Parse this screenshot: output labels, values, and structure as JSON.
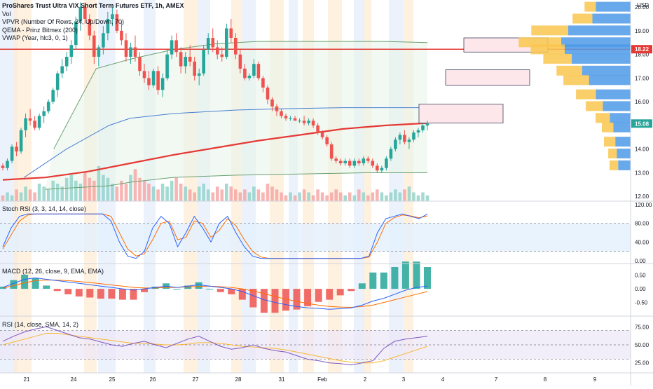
{
  "chart_data": {
    "type": "candlestick",
    "title": "ProShares Trust Ultra VIX Short Term Futures ETF, 1h, AMEX",
    "currency": "USD",
    "x_tick_labels": [
      "21",
      "24",
      "25",
      "26",
      "27",
      "28",
      "31",
      "Feb",
      "2",
      "3",
      "4",
      "7",
      "8",
      "9"
    ],
    "price_panel": {
      "ylim": [
        11.8,
        20.3
      ],
      "y_ticks": [
        "20.00",
        "19.00",
        "18.00",
        "17.00",
        "16.00",
        "15.00",
        "14.00",
        "13.00",
        "12.00"
      ],
      "price_labels": [
        {
          "text": "18.22",
          "value": 18.22,
          "color": "#e53935"
        },
        {
          "text": "15.08",
          "value": 15.08,
          "color": "#26a69a"
        }
      ],
      "candles_ohlc": [
        [
          13.3,
          13.4,
          13.1,
          13.2
        ],
        [
          13.2,
          13.6,
          13.1,
          13.5
        ],
        [
          13.5,
          14.2,
          13.4,
          14.1
        ],
        [
          14.1,
          14.3,
          13.7,
          13.9
        ],
        [
          13.9,
          14.9,
          13.8,
          14.8
        ],
        [
          14.8,
          15.5,
          14.5,
          15.3
        ],
        [
          15.3,
          15.7,
          15.0,
          15.2
        ],
        [
          15.2,
          15.4,
          14.8,
          14.9
        ],
        [
          14.9,
          15.5,
          14.8,
          15.4
        ],
        [
          15.4,
          15.8,
          15.1,
          15.6
        ],
        [
          15.6,
          16.1,
          15.5,
          16.0
        ],
        [
          16.0,
          16.6,
          15.9,
          16.5
        ],
        [
          16.5,
          17.3,
          16.2,
          17.2
        ],
        [
          17.2,
          17.8,
          17.0,
          17.5
        ],
        [
          17.5,
          18.1,
          17.3,
          17.9
        ],
        [
          17.9,
          18.6,
          17.6,
          18.4
        ],
        [
          18.4,
          19.6,
          18.2,
          19.4
        ],
        [
          19.4,
          20.2,
          19.0,
          20.0
        ],
        [
          20.0,
          20.2,
          19.3,
          19.5
        ],
        [
          19.5,
          19.7,
          18.6,
          18.8
        ],
        [
          18.8,
          19.0,
          17.6,
          17.9
        ],
        [
          17.9,
          18.4,
          17.5,
          18.3
        ],
        [
          18.3,
          19.2,
          18.0,
          18.9
        ],
        [
          18.9,
          19.8,
          18.6,
          19.5
        ],
        [
          19.5,
          20.0,
          19.2,
          19.7
        ],
        [
          19.7,
          19.9,
          18.9,
          19.0
        ],
        [
          19.0,
          19.4,
          18.4,
          18.6
        ],
        [
          18.6,
          18.9,
          17.7,
          17.9
        ],
        [
          17.9,
          18.5,
          17.6,
          18.3
        ],
        [
          18.3,
          18.8,
          17.7,
          17.9
        ],
        [
          17.9,
          18.1,
          17.1,
          17.3
        ],
        [
          17.3,
          17.6,
          16.8,
          17.0
        ],
        [
          17.0,
          17.3,
          16.5,
          16.7
        ],
        [
          16.7,
          17.4,
          16.6,
          17.3
        ],
        [
          17.3,
          17.5,
          16.3,
          16.5
        ],
        [
          16.5,
          17.2,
          16.2,
          17.0
        ],
        [
          17.0,
          18.2,
          16.9,
          18.0
        ],
        [
          18.0,
          18.8,
          17.8,
          18.6
        ],
        [
          18.6,
          18.9,
          17.9,
          18.1
        ],
        [
          18.1,
          18.3,
          17.2,
          17.5
        ],
        [
          17.5,
          18.1,
          17.2,
          17.9
        ],
        [
          17.9,
          18.4,
          17.5,
          17.7
        ],
        [
          17.7,
          17.9,
          16.9,
          17.1
        ],
        [
          17.1,
          17.4,
          16.7,
          17.2
        ],
        [
          17.2,
          18.4,
          17.1,
          18.2
        ],
        [
          18.2,
          18.9,
          18.0,
          18.7
        ],
        [
          18.7,
          19.1,
          18.1,
          18.3
        ],
        [
          18.3,
          18.6,
          17.8,
          18.0
        ],
        [
          18.0,
          18.3,
          17.7,
          17.9
        ],
        [
          17.9,
          19.3,
          17.8,
          19.1
        ],
        [
          19.1,
          19.5,
          18.5,
          18.7
        ],
        [
          18.7,
          18.9,
          17.8,
          18.0
        ],
        [
          18.0,
          18.2,
          17.2,
          17.4
        ],
        [
          17.4,
          17.6,
          16.9,
          17.0
        ],
        [
          17.0,
          17.2,
          16.9,
          17.1
        ],
        [
          17.1,
          17.8,
          17.0,
          17.6
        ],
        [
          17.6,
          17.7,
          16.9,
          17.0
        ],
        [
          17.0,
          17.1,
          16.4,
          16.6
        ],
        [
          16.6,
          16.7,
          15.9,
          16.1
        ],
        [
          16.1,
          16.2,
          15.6,
          15.8
        ],
        [
          15.8,
          15.9,
          15.4,
          15.6
        ],
        [
          15.6,
          15.7,
          15.3,
          15.4
        ],
        [
          15.4,
          15.5,
          15.2,
          15.3
        ],
        [
          15.3,
          15.4,
          15.2,
          15.3
        ],
        [
          15.3,
          15.4,
          15.2,
          15.2
        ],
        [
          15.2,
          15.3,
          15.1,
          15.2
        ],
        [
          15.2,
          15.4,
          15.0,
          15.1
        ],
        [
          15.1,
          15.3,
          15.0,
          15.2
        ],
        [
          15.2,
          15.3,
          14.9,
          15.0
        ],
        [
          15.0,
          15.1,
          14.6,
          14.7
        ],
        [
          14.7,
          14.8,
          14.4,
          14.5
        ],
        [
          14.5,
          14.6,
          14.1,
          14.2
        ],
        [
          14.2,
          14.3,
          13.5,
          13.6
        ],
        [
          13.6,
          13.7,
          13.4,
          13.5
        ],
        [
          13.5,
          13.6,
          13.3,
          13.4
        ],
        [
          13.4,
          13.6,
          13.3,
          13.5
        ],
        [
          13.5,
          13.6,
          13.2,
          13.3
        ],
        [
          13.3,
          13.6,
          13.2,
          13.5
        ],
        [
          13.5,
          13.6,
          13.3,
          13.4
        ],
        [
          13.4,
          13.7,
          13.3,
          13.6
        ],
        [
          13.6,
          13.7,
          13.4,
          13.5
        ],
        [
          13.5,
          13.6,
          13.2,
          13.3
        ],
        [
          13.3,
          13.4,
          13.0,
          13.1
        ],
        [
          13.1,
          13.3,
          13.0,
          13.2
        ],
        [
          13.2,
          13.7,
          13.1,
          13.6
        ],
        [
          13.6,
          14.1,
          13.5,
          14.0
        ],
        [
          14.0,
          14.5,
          13.9,
          14.4
        ],
        [
          14.4,
          14.7,
          14.2,
          14.6
        ],
        [
          14.6,
          14.8,
          14.2,
          14.3
        ],
        [
          14.3,
          14.5,
          14.0,
          14.4
        ],
        [
          14.4,
          14.8,
          14.3,
          14.7
        ],
        [
          14.7,
          14.9,
          14.5,
          14.8
        ],
        [
          14.8,
          15.1,
          14.7,
          15.0
        ],
        [
          15.0,
          15.2,
          14.8,
          15.08
        ]
      ],
      "qema_200": [
        [
          0,
          12.7
        ],
        [
          0.1,
          12.8
        ],
        [
          0.2,
          13.05
        ],
        [
          0.3,
          13.4
        ],
        [
          0.4,
          13.75
        ],
        [
          0.5,
          14.05
        ],
        [
          0.6,
          14.35
        ],
        [
          0.7,
          14.6
        ],
        [
          0.8,
          14.85
        ],
        [
          0.9,
          15.0
        ],
        [
          1.0,
          15.1
        ]
      ],
      "vwap_upper": [
        [
          0.12,
          14.0
        ],
        [
          0.22,
          17.4
        ],
        [
          0.3,
          17.8
        ],
        [
          0.4,
          18.2
        ],
        [
          0.5,
          18.45
        ],
        [
          0.6,
          18.55
        ],
        [
          0.75,
          18.55
        ],
        [
          0.9,
          18.55
        ],
        [
          1.0,
          18.5
        ]
      ],
      "vwap_mid": [
        [
          0.05,
          12.8
        ],
        [
          0.15,
          14.0
        ],
        [
          0.25,
          15.0
        ],
        [
          0.3,
          15.3
        ],
        [
          0.4,
          15.5
        ],
        [
          0.55,
          15.65
        ],
        [
          0.65,
          15.7
        ],
        [
          0.8,
          15.75
        ],
        [
          1.0,
          15.75
        ]
      ],
      "vwap_lower": [
        [
          0.1,
          12.3
        ],
        [
          0.25,
          12.45
        ],
        [
          0.3,
          12.6
        ],
        [
          0.4,
          12.8
        ],
        [
          0.55,
          12.9
        ],
        [
          0.7,
          12.95
        ],
        [
          0.85,
          13.0
        ],
        [
          1.0,
          13.0
        ]
      ],
      "horizontal_line": 18.22,
      "zones": [
        {
          "y_top": 18.7,
          "y_bottom": 18.1
        },
        {
          "y_top": 17.35,
          "y_bottom": 16.7
        },
        {
          "y_top": 15.9,
          "y_bottom": 15.1
        }
      ],
      "volume_profile": [
        {
          "price": 20.0,
          "up": 0.5,
          "down": 0.2
        },
        {
          "price": 19.5,
          "up": 0.55,
          "down": 0.35
        },
        {
          "price": 19.0,
          "up": 0.9,
          "down": 0.65
        },
        {
          "price": 18.5,
          "up": 1.0,
          "down": 0.75
        },
        {
          "price": 18.2,
          "up": 0.95,
          "down": 0.6
        },
        {
          "price": 17.8,
          "up": 0.85,
          "down": 0.5
        },
        {
          "price": 17.3,
          "up": 0.7,
          "down": 0.45
        },
        {
          "price": 16.9,
          "up": 0.6,
          "down": 0.45
        },
        {
          "price": 16.3,
          "up": 0.5,
          "down": 0.35
        },
        {
          "price": 15.8,
          "up": 0.4,
          "down": 0.3
        },
        {
          "price": 15.3,
          "up": 0.3,
          "down": 0.25
        },
        {
          "price": 14.9,
          "up": 0.25,
          "down": 0.2
        },
        {
          "price": 14.3,
          "up": 0.22,
          "down": 0.2
        },
        {
          "price": 13.8,
          "up": 0.2,
          "down": 0.15
        },
        {
          "price": 13.3,
          "up": 0.18,
          "down": 0.15
        }
      ],
      "volume_bars": [
        2,
        3,
        2,
        4,
        3,
        5,
        4,
        3,
        6,
        5,
        4,
        7,
        6,
        5,
        8,
        9,
        7,
        6,
        10,
        8,
        7,
        12,
        9,
        8,
        6,
        5,
        7,
        6,
        9,
        11,
        8,
        7,
        6,
        5,
        4,
        6,
        5,
        7,
        8,
        6,
        5,
        4,
        3,
        5,
        6,
        4,
        3,
        5,
        4,
        6,
        5,
        4,
        3,
        4,
        3,
        5,
        4,
        3,
        6,
        5,
        4,
        3,
        2,
        3,
        2,
        3,
        4,
        3,
        2,
        4,
        3,
        2,
        3,
        4,
        3,
        2,
        3,
        2,
        4,
        3,
        2,
        3,
        4,
        3,
        2,
        3,
        4,
        3,
        4,
        5,
        3,
        2,
        3,
        2
      ],
      "legend": [
        "Vol",
        "VPVR (Number Of Rows, 24, Up/Down, 70)",
        "QEMA - Prinz Bitmex (200)",
        "VWAP (Year, hlc3, 0, 1)"
      ]
    },
    "stoch_rsi": {
      "label": "Stoch RSI (3, 3, 14, 14, close)",
      "y_ticks": [
        "120.00",
        "80.00",
        "40.00",
        "0.00"
      ],
      "ylim": [
        0,
        120
      ],
      "band": [
        20,
        80
      ],
      "k": [
        30,
        70,
        95,
        100,
        100,
        100,
        100,
        100,
        100,
        100,
        100,
        100,
        100,
        85,
        40,
        10,
        5,
        20,
        70,
        95,
        80,
        30,
        60,
        95,
        70,
        40,
        80,
        95,
        60,
        30,
        10,
        5,
        5,
        5,
        5,
        5,
        5,
        5,
        5,
        5,
        5,
        5,
        5,
        5,
        10,
        60,
        90,
        95,
        100,
        95,
        90,
        100
      ],
      "d": [
        25,
        55,
        85,
        98,
        100,
        100,
        100,
        100,
        100,
        100,
        100,
        100,
        100,
        95,
        60,
        25,
        10,
        15,
        45,
        80,
        85,
        45,
        50,
        85,
        80,
        50,
        65,
        90,
        75,
        45,
        20,
        8,
        5,
        5,
        5,
        5,
        5,
        5,
        5,
        5,
        5,
        5,
        5,
        5,
        8,
        40,
        80,
        92,
        98,
        96,
        92,
        96
      ]
    },
    "macd": {
      "label": "MACD (12, 26, close, 9, EMA, EMA)",
      "y_ticks": [
        "0.50",
        "0.00",
        "-0.50"
      ],
      "ylim": [
        -0.9,
        0.8
      ],
      "macd": [
        0.05,
        0.2,
        0.35,
        0.4,
        0.35,
        0.3,
        0.25,
        0.2,
        0.15,
        0.1,
        0.05,
        0.0,
        -0.05,
        0.0,
        0.05,
        0.1,
        0.05,
        0.1,
        0.15,
        0.1,
        0.05,
        0.0,
        -0.1,
        -0.25,
        -0.4,
        -0.5,
        -0.58,
        -0.65,
        -0.7,
        -0.72,
        -0.75,
        -0.73,
        -0.7,
        -0.6,
        -0.45,
        -0.35,
        -0.2,
        -0.05,
        0.05,
        0.1
      ],
      "signal": [
        0.03,
        0.12,
        0.22,
        0.3,
        0.32,
        0.32,
        0.3,
        0.27,
        0.23,
        0.19,
        0.14,
        0.1,
        0.05,
        0.03,
        0.03,
        0.05,
        0.05,
        0.07,
        0.09,
        0.1,
        0.08,
        0.05,
        0.0,
        -0.08,
        -0.18,
        -0.28,
        -0.38,
        -0.46,
        -0.54,
        -0.6,
        -0.65,
        -0.67,
        -0.68,
        -0.65,
        -0.6,
        -0.5,
        -0.4,
        -0.3,
        -0.2,
        -0.1
      ]
    },
    "rsi": {
      "label": "RSI (14, close, SMA, 14, 2)",
      "y_ticks": [
        "75.00",
        "50.00",
        "25.00"
      ],
      "ylim": [
        15,
        85
      ],
      "band": [
        30,
        70
      ],
      "rsi": [
        55,
        62,
        68,
        72,
        75,
        70,
        65,
        60,
        58,
        54,
        50,
        48,
        52,
        55,
        50,
        46,
        52,
        58,
        62,
        55,
        48,
        44,
        46,
        50,
        45,
        42,
        40,
        35,
        30,
        28,
        25,
        24,
        22,
        25,
        28,
        45,
        55,
        58,
        60,
        62
      ],
      "rsi_ma": [
        50,
        54,
        58,
        62,
        66,
        66,
        64,
        62,
        60,
        58,
        56,
        54,
        52,
        52,
        51,
        50,
        50,
        51,
        53,
        53,
        52,
        50,
        48,
        47,
        46,
        45,
        43,
        40,
        37,
        34,
        31,
        28,
        26,
        25,
        25,
        28,
        33,
        38,
        43,
        48
      ]
    },
    "colors": {
      "up": "#26a69a",
      "down": "#ef5350",
      "qema": "#e53935",
      "vwap": "#4a7fd1",
      "vwap_band": "#6aa06f",
      "macd_line": "#2962ff",
      "signal_line": "#ff6d00",
      "rsi_line": "#7e57c2",
      "rsi_ma": "#f7b731",
      "profile_up": "#4e9ae8",
      "profile_down": "#f9c74f"
    }
  }
}
